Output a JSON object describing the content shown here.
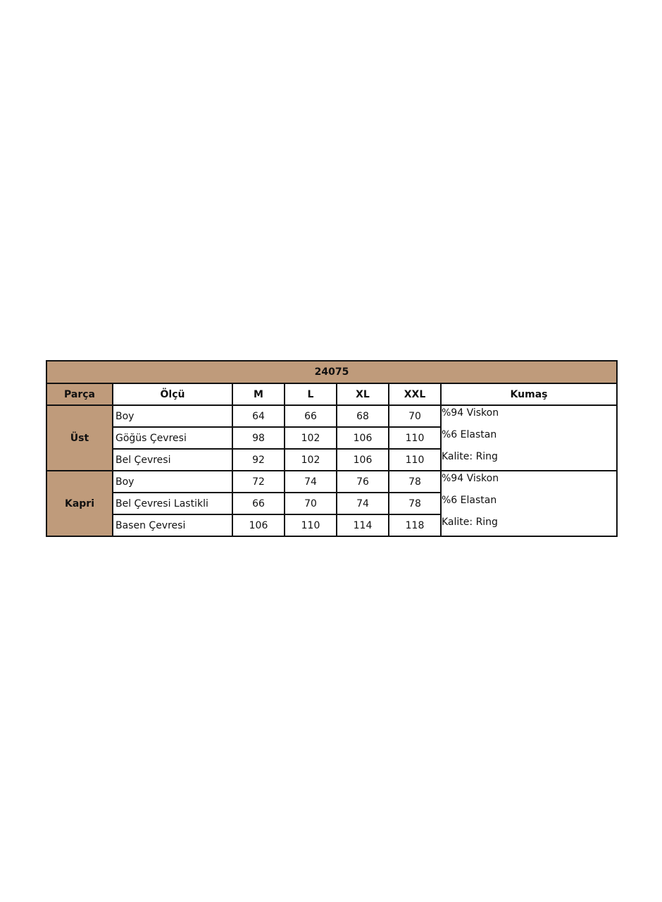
{
  "table": {
    "title": "24075",
    "header_color": "#bf9b7b",
    "headers": [
      "Parça",
      "Ölçü",
      "M",
      "L",
      "XL",
      "XXL",
      "Kumaş"
    ],
    "groups": [
      {
        "name": "Üst",
        "rows": [
          {
            "label": "Boy",
            "values": [
              "64",
              "66",
              "68",
              "70"
            ]
          },
          {
            "label": "Göğüs Çevresi",
            "values": [
              "98",
              "102",
              "106",
              "110"
            ]
          },
          {
            "label": "Bel Çevresi",
            "values": [
              "92",
              "102",
              "106",
              "110"
            ]
          }
        ],
        "fabric": [
          "%94 Viskon",
          "%6 Elastan",
          "Kalite: Ring"
        ]
      },
      {
        "name": "Kapri",
        "rows": [
          {
            "label": "Boy",
            "values": [
              "72",
              "74",
              "76",
              "78"
            ]
          },
          {
            "label": "Bel Çevresi Lastikli",
            "values": [
              "66",
              "70",
              "74",
              "78"
            ]
          },
          {
            "label": "Basen Çevresi",
            "values": [
              "106",
              "110",
              "114",
              "118"
            ]
          }
        ],
        "fabric": [
          "%94 Viskon",
          "%6 Elastan",
          "Kalite: Ring"
        ]
      }
    ]
  }
}
